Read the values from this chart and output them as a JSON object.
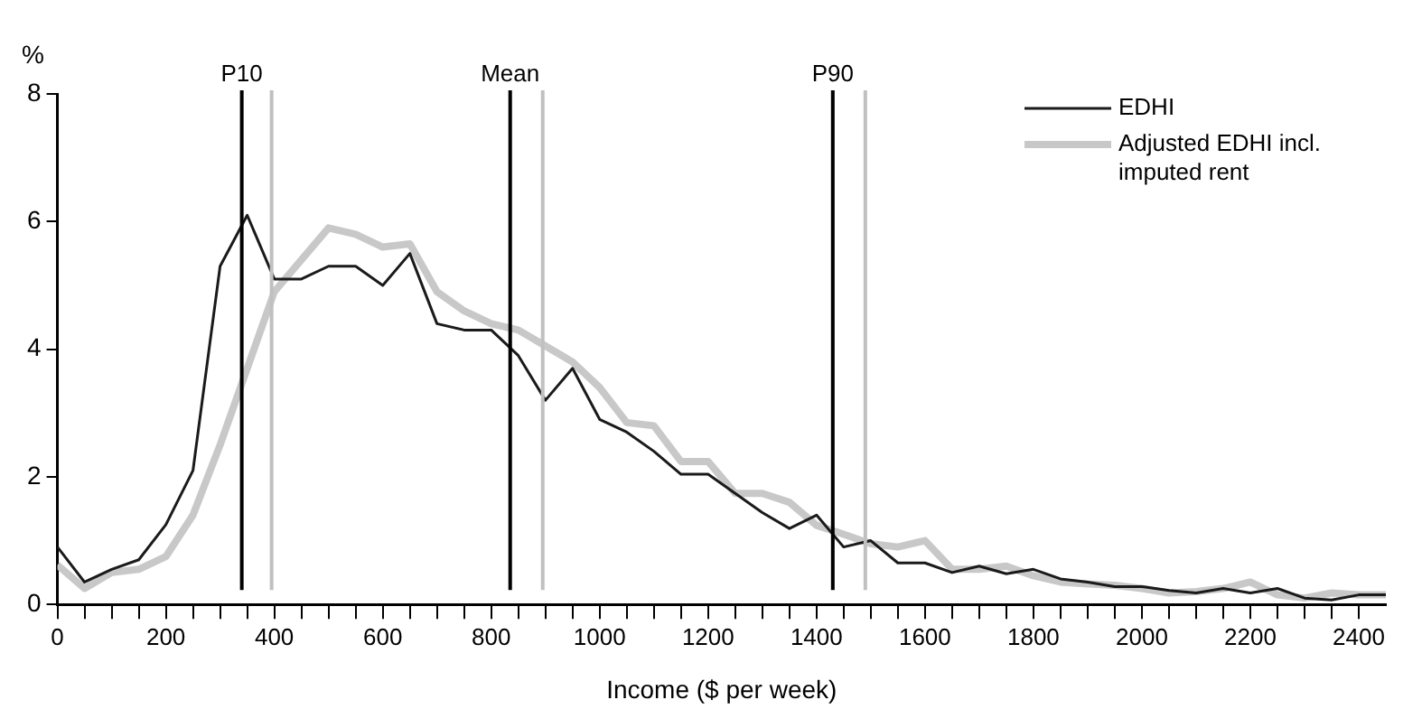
{
  "chart_data": {
    "type": "line",
    "xlabel": "Income ($ per week)",
    "ylabel": "%",
    "x": [
      0,
      50,
      100,
      150,
      200,
      250,
      300,
      350,
      400,
      450,
      500,
      550,
      600,
      650,
      700,
      750,
      800,
      850,
      900,
      950,
      1000,
      1050,
      1100,
      1150,
      1200,
      1250,
      1300,
      1350,
      1400,
      1450,
      1500,
      1550,
      1600,
      1650,
      1700,
      1750,
      1800,
      1850,
      1900,
      1950,
      2000,
      2050,
      2100,
      2150,
      2200,
      2250,
      2300,
      2350,
      2400,
      2450
    ],
    "series": [
      {
        "name": "Adjusted EDHI incl. imputed rent",
        "color": "#c8c8c8",
        "values": [
          0.62,
          0.25,
          0.5,
          0.55,
          0.75,
          1.4,
          2.5,
          3.7,
          4.9,
          5.4,
          5.9,
          5.8,
          5.6,
          5.65,
          4.9,
          4.6,
          4.4,
          4.3,
          4.05,
          3.8,
          3.4,
          2.85,
          2.8,
          2.24,
          2.24,
          1.74,
          1.74,
          1.6,
          1.24,
          1.1,
          0.95,
          0.9,
          1.0,
          0.55,
          0.55,
          0.6,
          0.45,
          0.35,
          0.32,
          0.3,
          0.25,
          0.18,
          0.2,
          0.25,
          0.35,
          0.15,
          0.1,
          0.18,
          0.15,
          0.15
        ]
      },
      {
        "name": "EDHI",
        "color": "#1a1a1a",
        "values": [
          0.9,
          0.35,
          0.55,
          0.7,
          1.25,
          2.1,
          5.3,
          6.1,
          5.1,
          5.1,
          5.3,
          5.3,
          5.0,
          5.5,
          4.4,
          4.3,
          4.3,
          3.9,
          3.2,
          3.7,
          2.9,
          2.7,
          2.4,
          2.04,
          2.04,
          1.74,
          1.44,
          1.19,
          1.4,
          0.9,
          1.0,
          0.65,
          0.65,
          0.5,
          0.6,
          0.48,
          0.55,
          0.4,
          0.35,
          0.28,
          0.28,
          0.22,
          0.18,
          0.25,
          0.18,
          0.25,
          0.1,
          0.07,
          0.15,
          0.15
        ]
      }
    ],
    "xlim": [
      0,
      2450
    ],
    "ylim": [
      0,
      8
    ],
    "yticks": [
      0,
      2,
      4,
      6,
      8
    ],
    "xticks": [
      0,
      {
        "value": 50,
        "label": null
      },
      {
        "value": 100,
        "label": null
      },
      {
        "value": 150,
        "label": null
      },
      200,
      {
        "value": 250,
        "label": null
      },
      {
        "value": 300,
        "label": null
      },
      {
        "value": 350,
        "label": null
      },
      400,
      {
        "value": 450,
        "label": null
      },
      {
        "value": 500,
        "label": null
      },
      {
        "value": 550,
        "label": null
      },
      600,
      {
        "value": 650,
        "label": null
      },
      {
        "value": 700,
        "label": null
      },
      {
        "value": 750,
        "label": null
      },
      800,
      {
        "value": 850,
        "label": null
      },
      {
        "value": 900,
        "label": null
      },
      {
        "value": 950,
        "label": null
      },
      1000,
      {
        "value": 1050,
        "label": null
      },
      {
        "value": 1100,
        "label": null
      },
      {
        "value": 1150,
        "label": null
      },
      1200,
      {
        "value": 1250,
        "label": null
      },
      {
        "value": 1300,
        "label": null
      },
      {
        "value": 1350,
        "label": null
      },
      1400,
      {
        "value": 1450,
        "label": null
      },
      {
        "value": 1500,
        "label": null
      },
      {
        "value": 1550,
        "label": null
      },
      1600,
      {
        "value": 1650,
        "label": null
      },
      {
        "value": 1700,
        "label": null
      },
      {
        "value": 1750,
        "label": null
      },
      1800,
      {
        "value": 1850,
        "label": null
      },
      {
        "value": 1900,
        "label": null
      },
      {
        "value": 1950,
        "label": null
      },
      2000,
      {
        "value": 2050,
        "label": null
      },
      {
        "value": 2100,
        "label": null
      },
      {
        "value": 2150,
        "label": null
      },
      2200,
      {
        "value": 2250,
        "label": null
      },
      {
        "value": 2300,
        "label": null
      },
      {
        "value": 2350,
        "label": null
      },
      2400
    ],
    "ref_lines": [
      {
        "axis": "x",
        "value": 340,
        "label": "P10",
        "color": "#000000"
      },
      {
        "axis": "x",
        "value": 395,
        "color": "#c0c0c0"
      },
      {
        "axis": "x",
        "value": 835,
        "label": "Mean",
        "color": "#000000"
      },
      {
        "axis": "x",
        "value": 895,
        "color": "#c0c0c0"
      },
      {
        "axis": "x",
        "value": 1430,
        "label": "P90",
        "color": "#000000"
      },
      {
        "axis": "x",
        "value": 1490,
        "color": "#c0c0c0"
      }
    ],
    "grid": false,
    "legend": "top right",
    "marker": "none",
    "line_style": "solid"
  }
}
